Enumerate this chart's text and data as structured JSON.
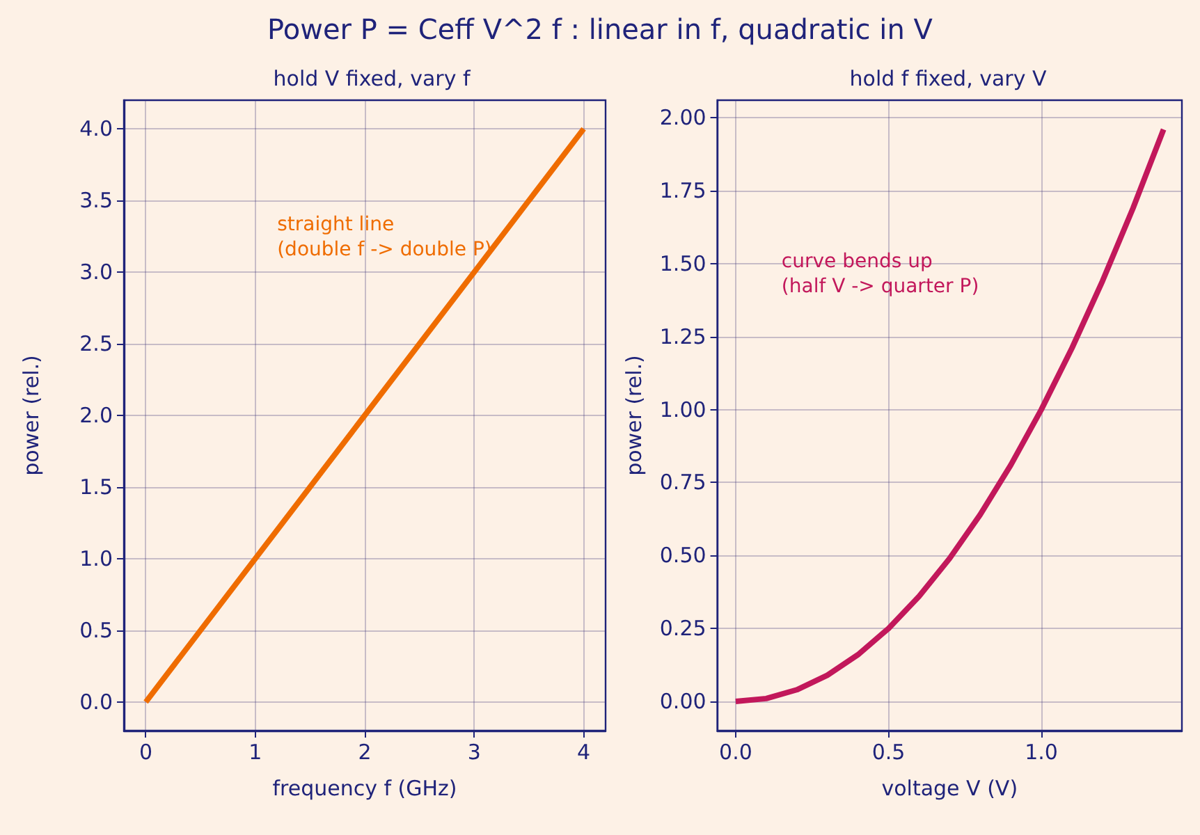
{
  "chart_data": [
    {
      "type": "line",
      "title": "Power P = Ceff V^2 f : linear in f, quadratic in V",
      "subtitle": "hold V fixed, vary f",
      "xlabel": "frequency f (GHz)",
      "ylabel": "power (rel.)",
      "x": [
        0,
        1,
        2,
        3,
        4
      ],
      "series": [
        {
          "color": "#ef6c00",
          "values": [
            0,
            1,
            2,
            3,
            4
          ]
        }
      ],
      "xlim": [
        -0.2,
        4.2
      ],
      "xticks": [
        0,
        1,
        2,
        3,
        4
      ],
      "ylim": [
        -0.2,
        4.2
      ],
      "yticks": [
        {
          "value": 0,
          "label": "0.0"
        },
        {
          "value": 0.5,
          "label": "0.5"
        },
        {
          "value": 1,
          "label": "1.0"
        },
        {
          "value": 1.5,
          "label": "1.5"
        },
        {
          "value": 2,
          "label": "2.0"
        },
        {
          "value": 2.5,
          "label": "2.5"
        },
        {
          "value": 3,
          "label": "3.0"
        },
        {
          "value": 3.5,
          "label": "3.5"
        },
        {
          "value": 4,
          "label": "4.0"
        }
      ],
      "annotations": [
        "straight line\n(double f -> double P)"
      ],
      "grid": true,
      "marker": "none",
      "line_style": "solid"
    },
    {
      "type": "line",
      "subtitle": "hold f fixed, vary V",
      "xlabel": "voltage V (V)",
      "ylabel": "power (rel.)",
      "x": [
        0,
        0.1,
        0.2,
        0.3,
        0.4,
        0.5,
        0.6,
        0.7,
        0.8,
        0.9,
        1.0,
        1.1,
        1.2,
        1.3,
        1.4
      ],
      "series": [
        {
          "color": "#c2185b",
          "values": [
            0,
            0.01,
            0.04,
            0.09,
            0.16,
            0.25,
            0.36,
            0.49,
            0.64,
            0.81,
            1.0,
            1.21,
            1.44,
            1.69,
            1.96
          ]
        }
      ],
      "xlim": [
        -0.06,
        1.46
      ],
      "xticks": [
        {
          "value": 0,
          "label": "0.0"
        },
        {
          "value": 0.5,
          "label": "0.5"
        },
        {
          "value": 1,
          "label": "1.0"
        }
      ],
      "ylim": [
        -0.1,
        2.06
      ],
      "yticks": [
        {
          "value": 0,
          "label": "0.00"
        },
        {
          "value": 0.25,
          "label": "0.25"
        },
        {
          "value": 0.5,
          "label": "0.50"
        },
        {
          "value": 0.75,
          "label": "0.75"
        },
        {
          "value": 1,
          "label": "1.00"
        },
        {
          "value": 1.25,
          "label": "1.25"
        },
        {
          "value": 1.5,
          "label": "1.50"
        },
        {
          "value": 1.75,
          "label": "1.75"
        },
        {
          "value": 2,
          "label": "2.00"
        }
      ],
      "annotations": [
        "curve bends up\n(half V -> quarter P)"
      ],
      "grid": true,
      "marker": "none",
      "line_style": "solid"
    }
  ]
}
